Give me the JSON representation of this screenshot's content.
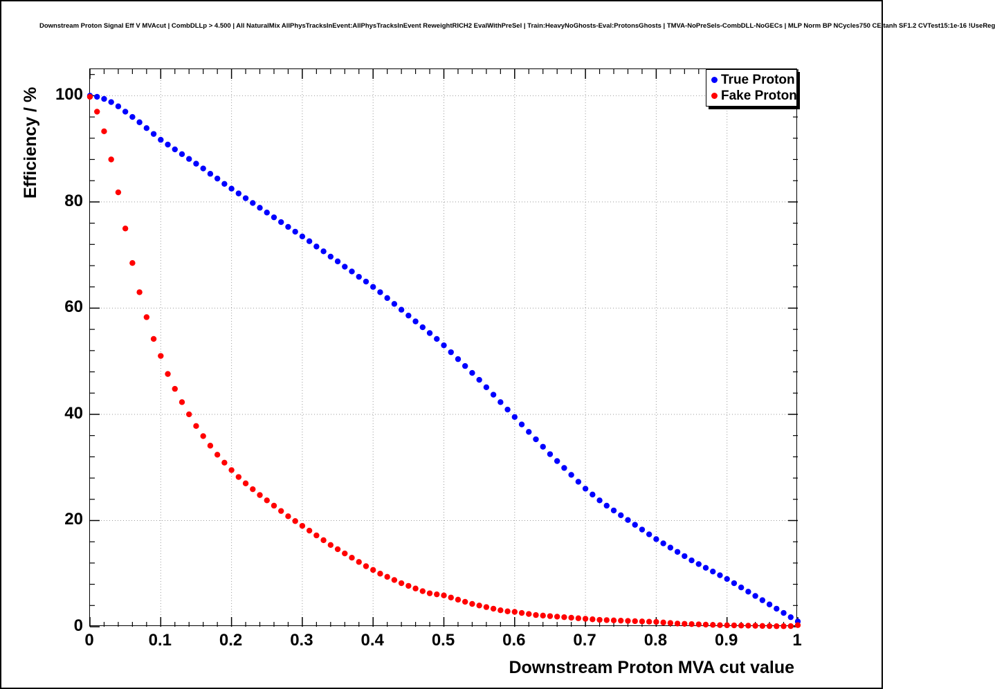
{
  "title": "Downstream Proton Signal Eff V MVAcut | CombDLLp > 4.500 | All NaturalMix AllPhysTracksInEvent:AllPhysTracksInEvent ReweightRICH2 EvalWithPreSel | Train:HeavyNoGhosts-Eval:ProtonsGhosts | TMVA-NoPreSels-CombDLL-NoGECs | MLP Norm BP NCycles750 CE tanh SF1.2 CVTest15:1e-16 !UseReg",
  "chart_data": {
    "type": "scatter",
    "title": "Downstream Proton Signal Eff V MVAcut | CombDLLp > 4.500 | All NaturalMix AllPhysTracksInEvent:AllPhysTracksInEvent ReweightRICH2 EvalWithPreSel | Train:HeavyNoGhosts-Eval:ProtonsGhosts | TMVA-NoPreSels-CombDLL-NoGECs | MLP Norm BP NCycles750 CE tanh SF1.2 CVTest15:1e-16 !UseReg",
    "xlabel": "Downstream Proton MVA cut value",
    "ylabel": "Efficiency / %",
    "xlim": [
      0,
      1
    ],
    "ylim": [
      0,
      105
    ],
    "grid": true,
    "grid_style": "dotted",
    "legend_position": "top-right",
    "x_ticks": [
      0,
      0.1,
      0.2,
      0.3,
      0.4,
      0.5,
      0.6,
      0.7,
      0.8,
      0.9,
      1
    ],
    "x_tick_labels": [
      "0",
      "0.1",
      "0.2",
      "0.3",
      "0.4",
      "0.5",
      "0.6",
      "0.7",
      "0.8",
      "0.9",
      "1"
    ],
    "y_ticks": [
      0,
      20,
      40,
      60,
      80,
      100
    ],
    "y_tick_labels": [
      "0",
      "20",
      "40",
      "60",
      "80",
      "100"
    ],
    "x": [
      0,
      0.01,
      0.02,
      0.03,
      0.04,
      0.05,
      0.06,
      0.07,
      0.08,
      0.09,
      0.1,
      0.11,
      0.12,
      0.13,
      0.14,
      0.15,
      0.16,
      0.17,
      0.18,
      0.19,
      0.2,
      0.21,
      0.22,
      0.23,
      0.24,
      0.25,
      0.26,
      0.27,
      0.28,
      0.29,
      0.3,
      0.31,
      0.32,
      0.33,
      0.34,
      0.35,
      0.36,
      0.37,
      0.38,
      0.39,
      0.4,
      0.41,
      0.42,
      0.43,
      0.44,
      0.45,
      0.46,
      0.47,
      0.48,
      0.49,
      0.5,
      0.51,
      0.52,
      0.53,
      0.54,
      0.55,
      0.56,
      0.57,
      0.58,
      0.59,
      0.6,
      0.61,
      0.62,
      0.63,
      0.64,
      0.65,
      0.66,
      0.67,
      0.68,
      0.69,
      0.7,
      0.71,
      0.72,
      0.73,
      0.74,
      0.75,
      0.76,
      0.77,
      0.78,
      0.79,
      0.8,
      0.81,
      0.82,
      0.83,
      0.84,
      0.85,
      0.86,
      0.87,
      0.88,
      0.89,
      0.9,
      0.91,
      0.92,
      0.93,
      0.94,
      0.95,
      0.96,
      0.97,
      0.98,
      0.99,
      1.0
    ],
    "series": [
      {
        "name": "True Proton",
        "color": "#0000ff",
        "marker": "filled-circle",
        "values": [
          100,
          99.8,
          99.4,
          98.8,
          98.0,
          97.0,
          96.0,
          95.0,
          93.9,
          92.8,
          91.7,
          90.8,
          89.9,
          89.0,
          88.1,
          87.2,
          86.3,
          85.3,
          84.4,
          83.4,
          82.5,
          81.6,
          80.7,
          79.8,
          78.9,
          78.0,
          77.1,
          76.2,
          75.3,
          74.4,
          73.5,
          72.6,
          71.6,
          70.7,
          69.7,
          68.8,
          67.8,
          66.9,
          65.9,
          65.0,
          64.0,
          63.0,
          61.9,
          60.8,
          59.7,
          58.6,
          57.5,
          56.4,
          55.3,
          54.2,
          53.0,
          51.7,
          50.4,
          49.1,
          47.8,
          46.5,
          45.1,
          43.7,
          42.3,
          40.9,
          39.5,
          38.1,
          36.7,
          35.3,
          33.9,
          32.5,
          31.2,
          29.9,
          28.6,
          27.3,
          26.0,
          24.9,
          23.8,
          22.8,
          21.9,
          21.0,
          20.1,
          19.2,
          18.3,
          17.4,
          16.5,
          15.7,
          14.9,
          14.1,
          13.3,
          12.5,
          11.8,
          11.1,
          10.4,
          9.7,
          9.0,
          8.2,
          7.4,
          6.6,
          5.8,
          5.0,
          4.2,
          3.4,
          2.6,
          1.8,
          1.0
        ]
      },
      {
        "name": "Fake Proton",
        "color": "#ff0000",
        "marker": "filled-circle",
        "values": [
          99.8,
          97.0,
          93.3,
          88.0,
          81.8,
          75.0,
          68.5,
          63.0,
          58.3,
          54.2,
          51.0,
          47.6,
          44.8,
          42.3,
          40.0,
          37.8,
          35.9,
          34.1,
          32.4,
          30.9,
          29.5,
          28.2,
          27.0,
          25.9,
          24.8,
          23.8,
          22.8,
          21.8,
          20.8,
          19.9,
          19.0,
          18.1,
          17.2,
          16.3,
          15.4,
          14.6,
          13.8,
          13.0,
          12.2,
          11.4,
          10.7,
          10.0,
          9.4,
          8.8,
          8.2,
          7.7,
          7.2,
          6.7,
          6.3,
          6.1,
          5.9,
          5.5,
          5.1,
          4.7,
          4.3,
          4.0,
          3.7,
          3.4,
          3.1,
          2.9,
          2.8,
          2.6,
          2.4,
          2.2,
          2.1,
          2.0,
          1.9,
          1.8,
          1.7,
          1.6,
          1.5,
          1.4,
          1.3,
          1.25,
          1.2,
          1.15,
          1.1,
          1.05,
          1.0,
          0.95,
          0.9,
          0.8,
          0.7,
          0.6,
          0.55,
          0.5,
          0.45,
          0.4,
          0.35,
          0.3,
          0.28,
          0.25,
          0.22,
          0.2,
          0.18,
          0.15,
          0.12,
          0.1,
          0.1,
          0.12,
          0.3
        ]
      }
    ]
  }
}
